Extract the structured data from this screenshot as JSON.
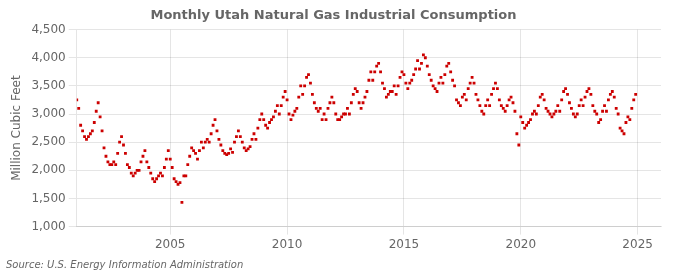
{
  "chart_data": {
    "type": "scatter",
    "title": "Monthly Utah Natural Gas Industrial Consumption",
    "ylabel": "Million Cubic Feet",
    "annotations": [
      "Source: U.S. Energy Information Administration"
    ],
    "color": "#cc0000",
    "marker": "square",
    "grid": true,
    "xlim": [
      2001,
      2026
    ],
    "xticks": [
      2005,
      2010,
      2015,
      2020,
      2025
    ],
    "ylim": [
      1000,
      4500
    ],
    "yticks": [
      {
        "value": 1000,
        "label": "1,000"
      },
      {
        "value": 1500,
        "label": "1,500"
      },
      {
        "value": 2000,
        "label": "2,000"
      },
      {
        "value": 2500,
        "label": "2,500"
      },
      {
        "value": 3000,
        "label": "3,000"
      },
      {
        "value": 3500,
        "label": "3,500"
      },
      {
        "value": 4000,
        "label": "4,000"
      },
      {
        "value": 4500,
        "label": "4,500"
      }
    ],
    "x": [
      2001,
      2001.0833,
      2001.1667,
      2001.25,
      2001.3333,
      2001.4167,
      2001.5,
      2001.5833,
      2001.6667,
      2001.75,
      2001.8333,
      2001.9167,
      2002,
      2002.0833,
      2002.1667,
      2002.25,
      2002.3333,
      2002.4167,
      2002.5,
      2002.5833,
      2002.6667,
      2002.75,
      2002.8333,
      2002.9167,
      2003,
      2003.0833,
      2003.1667,
      2003.25,
      2003.3333,
      2003.4167,
      2003.5,
      2003.5833,
      2003.6667,
      2003.75,
      2003.8333,
      2003.9167,
      2004,
      2004.0833,
      2004.1667,
      2004.25,
      2004.3333,
      2004.4167,
      2004.5,
      2004.5833,
      2004.6667,
      2004.75,
      2004.8333,
      2004.9167,
      2005,
      2005.0833,
      2005.1667,
      2005.25,
      2005.3333,
      2005.4167,
      2005.5,
      2005.5833,
      2005.6667,
      2005.75,
      2005.8333,
      2005.9167,
      2006,
      2006.0833,
      2006.1667,
      2006.25,
      2006.3333,
      2006.4167,
      2006.5,
      2006.5833,
      2006.6667,
      2006.75,
      2006.8333,
      2006.9167,
      2007,
      2007.0833,
      2007.1667,
      2007.25,
      2007.3333,
      2007.4167,
      2007.5,
      2007.5833,
      2007.6667,
      2007.75,
      2007.8333,
      2007.9167,
      2008,
      2008.0833,
      2008.1667,
      2008.25,
      2008.3333,
      2008.4167,
      2008.5,
      2008.5833,
      2008.6667,
      2008.75,
      2008.8333,
      2008.9167,
      2009,
      2009.0833,
      2009.1667,
      2009.25,
      2009.3333,
      2009.4167,
      2009.5,
      2009.5833,
      2009.6667,
      2009.75,
      2009.8333,
      2009.9167,
      2010,
      2010.0833,
      2010.1667,
      2010.25,
      2010.3333,
      2010.4167,
      2010.5,
      2010.5833,
      2010.6667,
      2010.75,
      2010.8333,
      2010.9167,
      2011,
      2011.0833,
      2011.1667,
      2011.25,
      2011.3333,
      2011.4167,
      2011.5,
      2011.5833,
      2011.6667,
      2011.75,
      2011.8333,
      2011.9167,
      2012,
      2012.0833,
      2012.1667,
      2012.25,
      2012.3333,
      2012.4167,
      2012.5,
      2012.5833,
      2012.6667,
      2012.75,
      2012.8333,
      2012.9167,
      2013,
      2013.0833,
      2013.1667,
      2013.25,
      2013.3333,
      2013.4167,
      2013.5,
      2013.5833,
      2013.6667,
      2013.75,
      2013.8333,
      2013.9167,
      2014,
      2014.0833,
      2014.1667,
      2014.25,
      2014.3333,
      2014.4167,
      2014.5,
      2014.5833,
      2014.6667,
      2014.75,
      2014.8333,
      2014.9167,
      2015,
      2015.0833,
      2015.1667,
      2015.25,
      2015.3333,
      2015.4167,
      2015.5,
      2015.5833,
      2015.6667,
      2015.75,
      2015.8333,
      2015.9167,
      2016,
      2016.0833,
      2016.1667,
      2016.25,
      2016.3333,
      2016.4167,
      2016.5,
      2016.5833,
      2016.6667,
      2016.75,
      2016.8333,
      2016.9167,
      2017,
      2017.0833,
      2017.1667,
      2017.25,
      2017.3333,
      2017.4167,
      2017.5,
      2017.5833,
      2017.6667,
      2017.75,
      2017.8333,
      2017.9167,
      2018,
      2018.0833,
      2018.1667,
      2018.25,
      2018.3333,
      2018.4167,
      2018.5,
      2018.5833,
      2018.6667,
      2018.75,
      2018.8333,
      2018.9167,
      2019,
      2019.0833,
      2019.1667,
      2019.25,
      2019.3333,
      2019.4167,
      2019.5,
      2019.5833,
      2019.6667,
      2019.75,
      2019.8333,
      2019.9167,
      2020,
      2020.0833,
      2020.1667,
      2020.25,
      2020.3333,
      2020.4167,
      2020.5,
      2020.5833,
      2020.6667,
      2020.75,
      2020.8333,
      2020.9167,
      2021,
      2021.0833,
      2021.1667,
      2021.25,
      2021.3333,
      2021.4167,
      2021.5,
      2021.5833,
      2021.6667,
      2021.75,
      2021.8333,
      2021.9167,
      2022,
      2022.0833,
      2022.1667,
      2022.25,
      2022.3333,
      2022.4167,
      2022.5,
      2022.5833,
      2022.6667,
      2022.75,
      2022.8333,
      2022.9167,
      2023,
      2023.0833,
      2023.1667,
      2023.25,
      2023.3333,
      2023.4167,
      2023.5,
      2023.5833,
      2023.6667,
      2023.75,
      2023.8333,
      2023.9167,
      2024,
      2024.0833,
      2024.1667,
      2024.25,
      2024.3333,
      2024.4167,
      2024.5,
      2024.5833,
      2024.6667,
      2024.75,
      2024.8333,
      2024.9167
    ],
    "values": [
      3250,
      3100,
      2800,
      2700,
      2600,
      2550,
      2600,
      2650,
      2700,
      2850,
      3050,
      3200,
      2950,
      2700,
      2400,
      2250,
      2150,
      2100,
      2100,
      2150,
      2100,
      2300,
      2500,
      2600,
      2450,
      2300,
      2100,
      2050,
      1950,
      1900,
      1950,
      2000,
      2000,
      2150,
      2250,
      2350,
      2150,
      2050,
      1950,
      1850,
      1800,
      1850,
      1900,
      1950,
      1900,
      2050,
      2200,
      2350,
      2200,
      2050,
      1850,
      1800,
      1750,
      1780,
      1430,
      1900,
      1900,
      2100,
      2250,
      2400,
      2350,
      2300,
      2200,
      2350,
      2500,
      2400,
      2500,
      2550,
      2500,
      2650,
      2800,
      2900,
      2700,
      2550,
      2450,
      2350,
      2300,
      2280,
      2300,
      2380,
      2320,
      2500,
      2600,
      2700,
      2600,
      2500,
      2400,
      2350,
      2380,
      2420,
      2550,
      2650,
      2550,
      2750,
      2900,
      3000,
      2900,
      2800,
      2750,
      2850,
      2900,
      2950,
      3050,
      3150,
      3000,
      3150,
      3300,
      3400,
      3250,
      3000,
      2900,
      2980,
      3050,
      3100,
      3300,
      3500,
      3350,
      3500,
      3650,
      3700,
      3550,
      3350,
      3200,
      3100,
      3050,
      3100,
      2900,
      3000,
      2900,
      3100,
      3200,
      3300,
      3200,
      3000,
      2900,
      2900,
      2950,
      3000,
      3000,
      3100,
      3000,
      3200,
      3350,
      3450,
      3400,
      3200,
      3100,
      3200,
      3300,
      3400,
      3600,
      3750,
      3600,
      3750,
      3850,
      3900,
      3750,
      3550,
      3450,
      3300,
      3350,
      3400,
      3400,
      3500,
      3350,
      3500,
      3650,
      3750,
      3700,
      3550,
      3450,
      3550,
      3600,
      3700,
      3800,
      3950,
      3800,
      3900,
      4050,
      4000,
      3850,
      3700,
      3600,
      3500,
      3450,
      3400,
      3550,
      3650,
      3550,
      3700,
      3850,
      3900,
      3750,
      3600,
      3500,
      3250,
      3200,
      3150,
      3300,
      3350,
      3250,
      3450,
      3550,
      3650,
      3550,
      3350,
      3250,
      3150,
      3050,
      3000,
      3150,
      3250,
      3150,
      3350,
      3450,
      3550,
      3450,
      3250,
      3150,
      3100,
      3050,
      3150,
      3250,
      3300,
      3200,
      3050,
      2650,
      2450,
      2950,
      2850,
      2750,
      2800,
      2850,
      2900,
      3000,
      3050,
      3000,
      3150,
      3300,
      3350,
      3250,
      3100,
      3050,
      3000,
      2950,
      3000,
      3050,
      3150,
      3050,
      3250,
      3400,
      3450,
      3350,
      3200,
      3100,
      3000,
      2950,
      3000,
      3150,
      3250,
      3150,
      3300,
      3400,
      3450,
      3350,
      3150,
      3050,
      3000,
      2850,
      2900,
      3050,
      3150,
      3050,
      3250,
      3350,
      3400,
      3300,
      3100,
      3000,
      2750,
      2700,
      2650,
      2850,
      2950,
      2900,
      3100,
      3250,
      3350
    ]
  }
}
